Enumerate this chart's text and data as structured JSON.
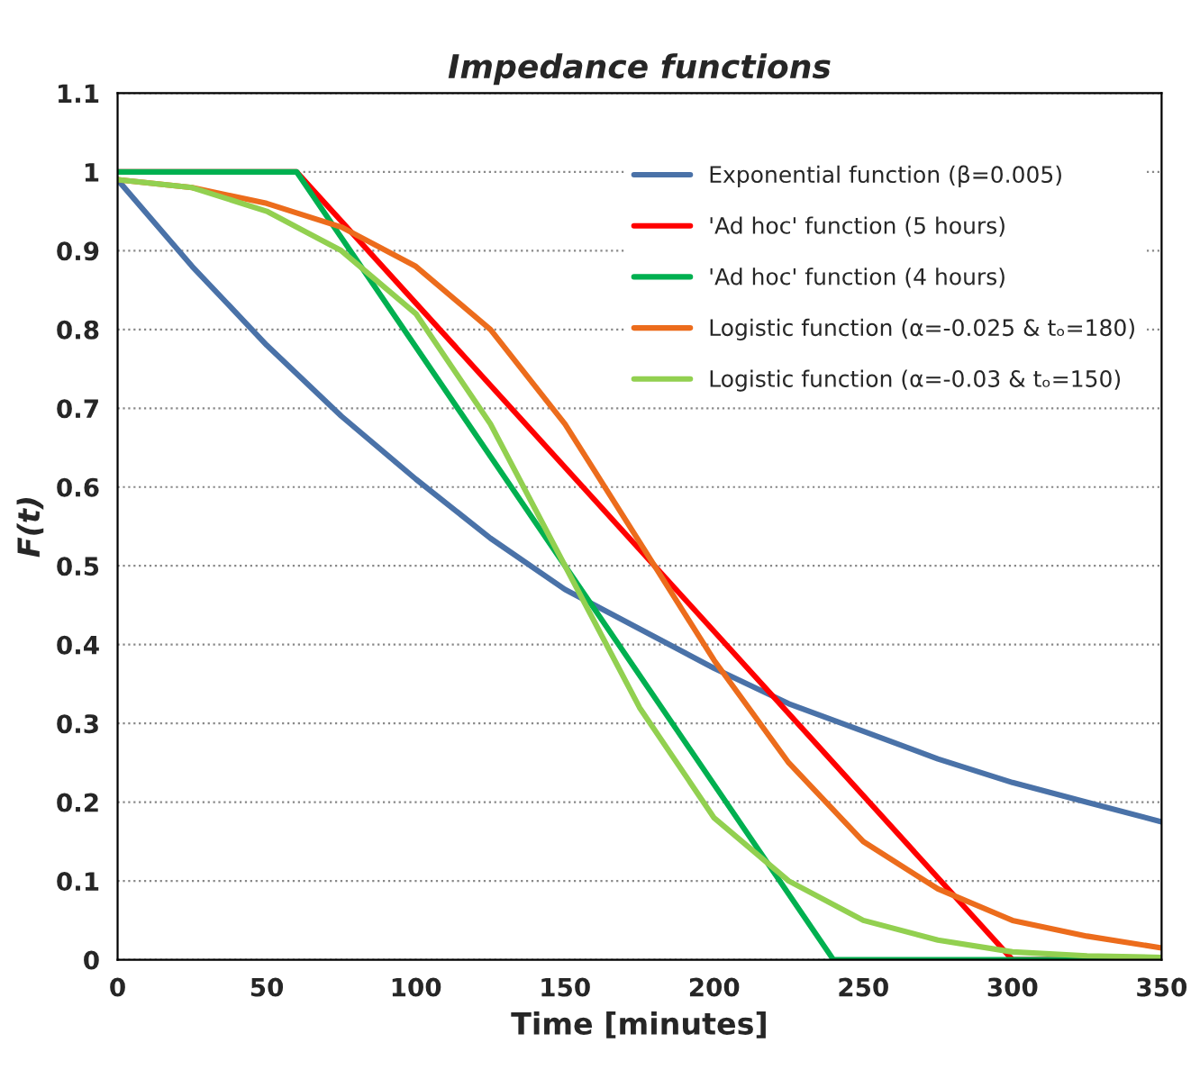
{
  "chart_data": {
    "type": "line",
    "title": "Impedance functions",
    "xlabel": "Time [minutes]",
    "ylabel": "F(t)",
    "xlim": [
      0,
      350
    ],
    "xticks": [
      0,
      50,
      100,
      150,
      200,
      250,
      300,
      350
    ],
    "ylim": [
      0,
      1.1
    ],
    "yticks": [
      0,
      0.1,
      0.2,
      0.3,
      0.4,
      0.5,
      0.6,
      0.7,
      0.8,
      0.9,
      1,
      1.1
    ],
    "grid": "y",
    "legend": "top right",
    "marker": "none",
    "line_style": "solid",
    "series": [
      {
        "name": "Exponential function (β=0.005)",
        "color": "#4a72a8",
        "x": [
          0,
          25,
          50,
          75,
          100,
          125,
          150,
          175,
          200,
          225,
          250,
          275,
          300,
          325,
          350
        ],
        "values": [
          0.99,
          0.88,
          0.78,
          0.69,
          0.61,
          0.535,
          0.47,
          0.42,
          0.37,
          0.325,
          0.29,
          0.255,
          0.225,
          0.2,
          0.175
        ]
      },
      {
        "name": "'Ad hoc' function (5 hours)",
        "color": "#ff0000",
        "x": [
          0,
          60,
          300,
          350
        ],
        "values": [
          1,
          1,
          0,
          0
        ]
      },
      {
        "name": "'Ad hoc' function (4 hours)",
        "color": "#00b050",
        "x": [
          0,
          60,
          240,
          350
        ],
        "values": [
          1,
          1,
          0,
          0
        ]
      },
      {
        "name": "Logistic function (α=-0.025 & tₒ=180)",
        "color": "#ec6c1c",
        "x": [
          0,
          25,
          50,
          75,
          100,
          125,
          150,
          175,
          200,
          225,
          250,
          275,
          300,
          325,
          350
        ],
        "values": [
          0.99,
          0.98,
          0.96,
          0.93,
          0.88,
          0.8,
          0.68,
          0.53,
          0.38,
          0.25,
          0.15,
          0.09,
          0.05,
          0.03,
          0.015
        ]
      },
      {
        "name": "Logistic function (α=-0.03 & tₒ=150)",
        "color": "#92d050",
        "x": [
          0,
          25,
          50,
          75,
          100,
          125,
          150,
          175,
          200,
          225,
          250,
          275,
          300,
          325,
          350
        ],
        "values": [
          0.99,
          0.98,
          0.95,
          0.9,
          0.82,
          0.68,
          0.5,
          0.32,
          0.18,
          0.1,
          0.05,
          0.025,
          0.01,
          0.005,
          0.003
        ]
      }
    ]
  }
}
